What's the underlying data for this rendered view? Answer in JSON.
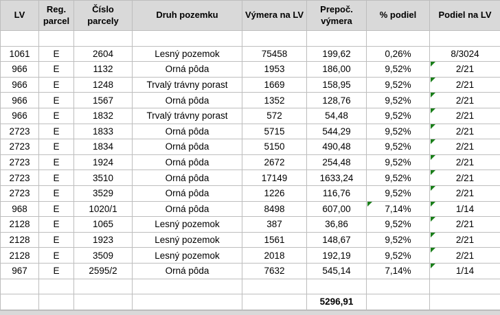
{
  "colors": {
    "header_bg": "#d9d9d9",
    "gridline": "#bdbdbd",
    "text": "#000000",
    "error_indicator_green": "#1a7f1a"
  },
  "table": {
    "headers": [
      "LV",
      "Reg. parcel",
      "Číslo parcely",
      "Druh pozemku",
      "Výmera na LV",
      "Prepoč. výmera",
      "% podiel",
      "Podiel na LV"
    ],
    "rows": [
      {
        "lv": "1061",
        "reg": "E",
        "cislo": "2604",
        "druh": "Lesný pozemok",
        "vymera": "75458",
        "prepoc": "199,62",
        "podiel_pct": "0,26%",
        "podiel_lv": "8/3024",
        "flag_pct": false,
        "flag_lv": false
      },
      {
        "lv": "966",
        "reg": "E",
        "cislo": "1132",
        "druh": "Orná pôda",
        "vymera": "1953",
        "prepoc": "186,00",
        "podiel_pct": "9,52%",
        "podiel_lv": "2/21",
        "flag_pct": false,
        "flag_lv": true
      },
      {
        "lv": "966",
        "reg": "E",
        "cislo": "1248",
        "druh": "Trvalý trávny porast",
        "vymera": "1669",
        "prepoc": "158,95",
        "podiel_pct": "9,52%",
        "podiel_lv": "2/21",
        "flag_pct": false,
        "flag_lv": true
      },
      {
        "lv": "966",
        "reg": "E",
        "cislo": "1567",
        "druh": "Orná pôda",
        "vymera": "1352",
        "prepoc": "128,76",
        "podiel_pct": "9,52%",
        "podiel_lv": "2/21",
        "flag_pct": false,
        "flag_lv": true
      },
      {
        "lv": "966",
        "reg": "E",
        "cislo": "1832",
        "druh": "Trvalý trávny porast",
        "vymera": "572",
        "prepoc": "54,48",
        "podiel_pct": "9,52%",
        "podiel_lv": "2/21",
        "flag_pct": false,
        "flag_lv": true
      },
      {
        "lv": "2723",
        "reg": "E",
        "cislo": "1833",
        "druh": "Orná pôda",
        "vymera": "5715",
        "prepoc": "544,29",
        "podiel_pct": "9,52%",
        "podiel_lv": "2/21",
        "flag_pct": false,
        "flag_lv": true
      },
      {
        "lv": "2723",
        "reg": "E",
        "cislo": "1834",
        "druh": "Orná pôda",
        "vymera": "5150",
        "prepoc": "490,48",
        "podiel_pct": "9,52%",
        "podiel_lv": "2/21",
        "flag_pct": false,
        "flag_lv": true
      },
      {
        "lv": "2723",
        "reg": "E",
        "cislo": "1924",
        "druh": "Orná pôda",
        "vymera": "2672",
        "prepoc": "254,48",
        "podiel_pct": "9,52%",
        "podiel_lv": "2/21",
        "flag_pct": false,
        "flag_lv": true
      },
      {
        "lv": "2723",
        "reg": "E",
        "cislo": "3510",
        "druh": "Orná pôda",
        "vymera": "17149",
        "prepoc": "1633,24",
        "podiel_pct": "9,52%",
        "podiel_lv": "2/21",
        "flag_pct": false,
        "flag_lv": true
      },
      {
        "lv": "2723",
        "reg": "E",
        "cislo": "3529",
        "druh": "Orná pôda",
        "vymera": "1226",
        "prepoc": "116,76",
        "podiel_pct": "9,52%",
        "podiel_lv": "2/21",
        "flag_pct": false,
        "flag_lv": true
      },
      {
        "lv": "968",
        "reg": "E",
        "cislo": "1020/1",
        "druh": "Orná pôda",
        "vymera": "8498",
        "prepoc": "607,00",
        "podiel_pct": "7,14%",
        "podiel_lv": "1/14",
        "flag_pct": true,
        "flag_lv": true
      },
      {
        "lv": "2128",
        "reg": "E",
        "cislo": "1065",
        "druh": "Lesný pozemok",
        "vymera": "387",
        "prepoc": "36,86",
        "podiel_pct": "9,52%",
        "podiel_lv": "2/21",
        "flag_pct": false,
        "flag_lv": true
      },
      {
        "lv": "2128",
        "reg": "E",
        "cislo": "1923",
        "druh": "Lesný pozemok",
        "vymera": "1561",
        "prepoc": "148,67",
        "podiel_pct": "9,52%",
        "podiel_lv": "2/21",
        "flag_pct": false,
        "flag_lv": true
      },
      {
        "lv": "2128",
        "reg": "E",
        "cislo": "3509",
        "druh": "Lesný pozemok",
        "vymera": "2018",
        "prepoc": "192,19",
        "podiel_pct": "9,52%",
        "podiel_lv": "2/21",
        "flag_pct": false,
        "flag_lv": true
      },
      {
        "lv": "967",
        "reg": "E",
        "cislo": "2595/2",
        "druh": "Orná pôda",
        "vymera": "7632",
        "prepoc": "545,14",
        "podiel_pct": "7,14%",
        "podiel_lv": "1/14",
        "flag_pct": false,
        "flag_lv": true
      }
    ],
    "total": {
      "prepoc": "5296,91"
    }
  }
}
